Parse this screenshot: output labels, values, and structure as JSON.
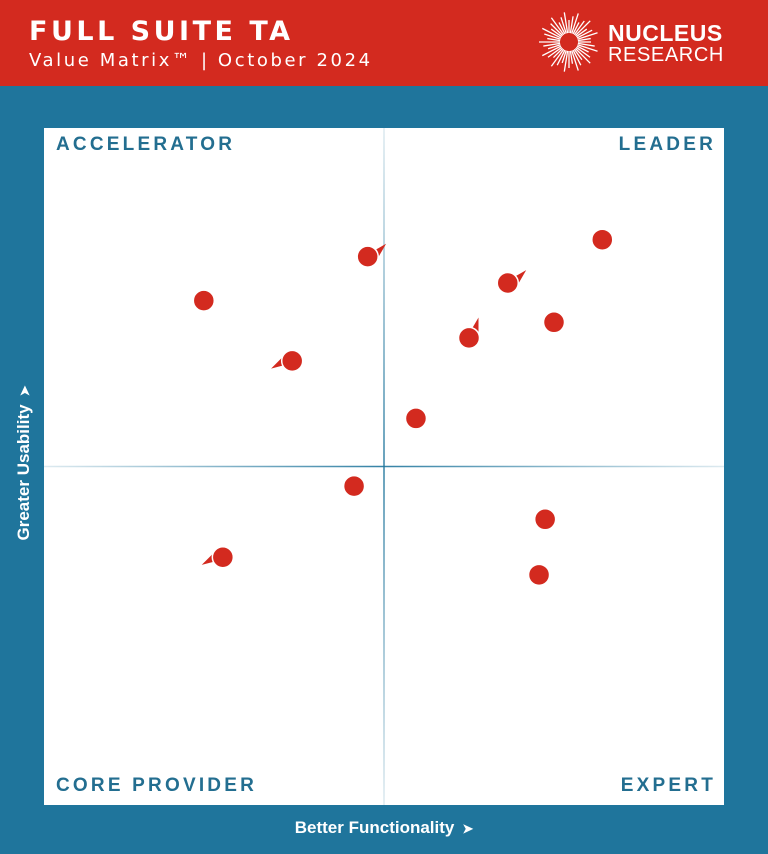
{
  "header": {
    "title": "FULL SUITE TA",
    "subtitle": "Value Matrix™  | October 2024",
    "logo_line1": "NUCLEUS",
    "logo_line2": "RESEARCH"
  },
  "colors": {
    "header_bg": "#d32a1f",
    "frame_bg": "#1f759c",
    "quadrant_label": "#236e90",
    "marker": "#d32a1f",
    "divider": "#8fb8ce"
  },
  "chart_data": {
    "type": "scatter",
    "title": "",
    "xlabel": "Better Functionality",
    "ylabel": "Greater Usability",
    "xlim": [
      0,
      100
    ],
    "ylim": [
      0,
      100
    ],
    "quadrants": {
      "top_left": "ACCELERATOR",
      "top_right": "LEADER",
      "bottom_left": "CORE PROVIDER",
      "bottom_right": "EXPERT"
    },
    "points": [
      {
        "x": 47.6,
        "y": 81.0,
        "arrow": "up-right"
      },
      {
        "x": 23.5,
        "y": 74.5,
        "arrow": ""
      },
      {
        "x": 36.5,
        "y": 65.6,
        "arrow": "left"
      },
      {
        "x": 82.1,
        "y": 83.5,
        "arrow": ""
      },
      {
        "x": 68.2,
        "y": 77.1,
        "arrow": "up-right"
      },
      {
        "x": 62.5,
        "y": 69.0,
        "arrow": "up"
      },
      {
        "x": 75.0,
        "y": 71.3,
        "arrow": ""
      },
      {
        "x": 54.7,
        "y": 57.1,
        "arrow": ""
      },
      {
        "x": 45.6,
        "y": 47.1,
        "arrow": ""
      },
      {
        "x": 26.3,
        "y": 36.6,
        "arrow": "left"
      },
      {
        "x": 73.7,
        "y": 42.2,
        "arrow": ""
      },
      {
        "x": 72.8,
        "y": 34.0,
        "arrow": ""
      }
    ]
  }
}
